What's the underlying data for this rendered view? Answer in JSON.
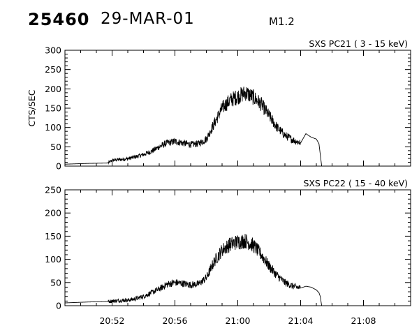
{
  "header": {
    "event_id": "25460",
    "date": "29-MAR-01",
    "flare_class": "M1.2"
  },
  "chart_data": [
    {
      "type": "line",
      "title": "SXS PC21  (  3 - 15 keV)",
      "ylabel": "CTS/SEC",
      "xlabel": "",
      "ylim": [
        0,
        300
      ],
      "yticks": [
        0,
        50,
        100,
        150,
        200,
        250,
        300
      ],
      "xlim": [
        "20:49:00",
        "21:11:00"
      ],
      "xticks": [
        "20:52",
        "20:56",
        "21:00",
        "21:04",
        "21:08"
      ],
      "show_xtick_labels": false,
      "series": [
        {
          "x": [
            "20:49:00",
            "20:50:30",
            "20:51:45",
            "20:51:55",
            "20:52:00",
            "20:52:30",
            "20:53:00",
            "20:53:30",
            "20:54:00",
            "20:54:30",
            "20:55:00",
            "20:55:30",
            "20:56:00",
            "20:56:30",
            "20:57:00",
            "20:57:30",
            "20:58:00",
            "20:58:30",
            "20:59:00",
            "20:59:30",
            "21:00:00",
            "21:00:30",
            "21:01:00",
            "21:01:30",
            "21:02:00",
            "21:02:30",
            "21:03:00",
            "21:03:30",
            "21:04:00",
            "21:04:20",
            "21:04:40",
            "21:05:00",
            "21:05:10",
            "21:05:15",
            "21:05:20"
          ],
          "y": [
            5,
            7,
            8,
            12,
            15,
            17,
            19,
            24,
            30,
            38,
            50,
            60,
            64,
            60,
            56,
            58,
            70,
            110,
            150,
            170,
            180,
            190,
            178,
            160,
            130,
            100,
            80,
            68,
            60,
            84,
            75,
            70,
            58,
            30,
            2
          ]
        }
      ]
    },
    {
      "type": "line",
      "title": "SXS PC22  ( 15 - 40 keV)",
      "ylabel": "",
      "xlabel": "",
      "ylim": [
        0,
        250
      ],
      "yticks": [
        0,
        50,
        100,
        150,
        200,
        250
      ],
      "xlim": [
        "20:49:00",
        "21:11:00"
      ],
      "xticks": [
        "20:52",
        "20:56",
        "21:00",
        "21:04",
        "21:08"
      ],
      "show_xtick_labels": true,
      "series": [
        {
          "x": [
            "20:49:00",
            "20:50:30",
            "20:51:45",
            "20:52:00",
            "20:52:30",
            "20:53:00",
            "20:53:30",
            "20:54:00",
            "20:54:30",
            "20:55:00",
            "20:55:30",
            "20:56:00",
            "20:56:30",
            "20:57:00",
            "20:57:30",
            "20:58:00",
            "20:58:30",
            "20:59:00",
            "20:59:30",
            "21:00:00",
            "21:00:30",
            "21:01:00",
            "21:01:30",
            "21:02:00",
            "21:02:30",
            "21:03:00",
            "21:03:30",
            "21:04:00",
            "21:04:20",
            "21:04:40",
            "21:05:00",
            "21:05:10",
            "21:05:15",
            "21:05:20"
          ],
          "y": [
            6,
            8,
            9,
            10,
            11,
            12,
            15,
            20,
            28,
            36,
            46,
            50,
            48,
            45,
            47,
            60,
            95,
            120,
            132,
            138,
            140,
            130,
            110,
            85,
            65,
            50,
            42,
            38,
            42,
            40,
            34,
            28,
            20,
            1
          ]
        }
      ]
    }
  ]
}
